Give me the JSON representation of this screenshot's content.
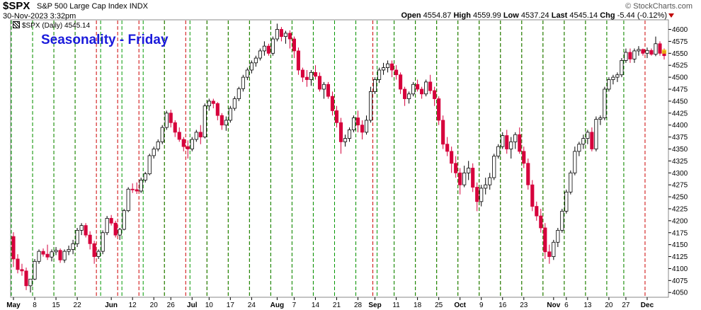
{
  "header": {
    "symbol": "$SPX",
    "description": "S&P 500 Large Cap Index",
    "exchange": "INDX",
    "timestamp": "30-Nov-2023 3:32pm",
    "watermark": "© StockCharts.com",
    "open_label": "Open",
    "open": "4554.87",
    "high_label": "High",
    "high": "4559.99",
    "low_label": "Low",
    "low": "4537.24",
    "last_label": "Last",
    "last": "4545.14",
    "chg_label": "Chg",
    "chg": "-5.44 (-0.12%)"
  },
  "legend": "$SPX (Daily) 4545.14",
  "title": "Seasonality - Friday",
  "colors": {
    "up": "#ffffff",
    "down": "#d6003c",
    "flat": "#000000",
    "friday_line": "#cc0000",
    "monday_line": "#009900",
    "title": "#1a1adb"
  },
  "chart_data": {
    "type": "candlestick",
    "title": "Seasonality - Friday",
    "ylim": [
      4040,
      4620
    ],
    "yticks": [
      4050,
      4075,
      4100,
      4125,
      4150,
      4175,
      4200,
      4225,
      4250,
      4275,
      4300,
      4325,
      4350,
      4375,
      4400,
      4425,
      4450,
      4475,
      4500,
      4525,
      4550,
      4575,
      4600
    ],
    "x_labels": [
      {
        "label": "May",
        "i": 0,
        "month": true
      },
      {
        "label": "8",
        "i": 5
      },
      {
        "label": "15",
        "i": 10
      },
      {
        "label": "22",
        "i": 15
      },
      {
        "label": "Jun",
        "i": 23,
        "month": true
      },
      {
        "label": "12",
        "i": 28
      },
      {
        "label": "20",
        "i": 33
      },
      {
        "label": "26",
        "i": 37
      },
      {
        "label": "Jul",
        "i": 42,
        "month": true
      },
      {
        "label": "10",
        "i": 46
      },
      {
        "label": "17",
        "i": 51
      },
      {
        "label": "24",
        "i": 56
      },
      {
        "label": "Aug",
        "i": 62,
        "month": true
      },
      {
        "label": "7",
        "i": 66
      },
      {
        "label": "14",
        "i": 71
      },
      {
        "label": "21",
        "i": 76
      },
      {
        "label": "28",
        "i": 81
      },
      {
        "label": "Sep",
        "i": 85,
        "month": true
      },
      {
        "label": "11",
        "i": 90
      },
      {
        "label": "18",
        "i": 95
      },
      {
        "label": "25",
        "i": 100
      },
      {
        "label": "Oct",
        "i": 105,
        "month": true
      },
      {
        "label": "9",
        "i": 110
      },
      {
        "label": "16",
        "i": 115
      },
      {
        "label": "23",
        "i": 120
      },
      {
        "label": "Nov",
        "i": 127,
        "month": true
      },
      {
        "label": "6",
        "i": 130
      },
      {
        "label": "13",
        "i": 135
      },
      {
        "label": "20",
        "i": 140
      },
      {
        "label": "27",
        "i": 144
      },
      {
        "label": "Dec",
        "i": 149,
        "month": true
      }
    ],
    "friday_lines": [
      4,
      9,
      14,
      19,
      24,
      29,
      35,
      40,
      45,
      50,
      55,
      60,
      65,
      70,
      75,
      80,
      84,
      89,
      94,
      99,
      104,
      109,
      114,
      119,
      124,
      129,
      134,
      139,
      143,
      148
    ],
    "monday_lines": [
      0,
      5,
      10,
      15,
      21,
      26,
      31,
      36,
      42,
      46,
      51,
      56,
      61,
      66,
      71,
      76,
      81,
      86,
      90,
      95,
      100,
      105,
      110,
      115,
      120,
      125,
      130,
      135,
      140,
      144
    ],
    "candles": [
      [
        4167,
        4176,
        4103,
        4120
      ],
      [
        4120,
        4130,
        4090,
        4098
      ],
      [
        4098,
        4110,
        4085,
        4095
      ],
      [
        4095,
        4102,
        4055,
        4064
      ],
      [
        4064,
        4075,
        4050,
        4078
      ],
      [
        4078,
        4120,
        4076,
        4115
      ],
      [
        4115,
        4140,
        4110,
        4136
      ],
      [
        4136,
        4142,
        4125,
        4130
      ],
      [
        4130,
        4150,
        4118,
        4124
      ],
      [
        4124,
        4140,
        4115,
        4135
      ],
      [
        4135,
        4145,
        4128,
        4138
      ],
      [
        4138,
        4142,
        4112,
        4118
      ],
      [
        4118,
        4140,
        4112,
        4136
      ],
      [
        4136,
        4148,
        4128,
        4140
      ],
      [
        4140,
        4160,
        4130,
        4152
      ],
      [
        4152,
        4185,
        4145,
        4180
      ],
      [
        4180,
        4195,
        4170,
        4190
      ],
      [
        4190,
        4195,
        4165,
        4170
      ],
      [
        4170,
        4178,
        4140,
        4152
      ],
      [
        4152,
        4158,
        4110,
        4125
      ],
      [
        4125,
        4140,
        4120,
        4136
      ],
      [
        4136,
        4180,
        4130,
        4175
      ],
      [
        4175,
        4210,
        4170,
        4205
      ],
      [
        4205,
        4212,
        4190,
        4195
      ],
      [
        4195,
        4200,
        4165,
        4170
      ],
      [
        4170,
        4185,
        4160,
        4182
      ],
      [
        4182,
        4225,
        4180,
        4221
      ],
      [
        4221,
        4270,
        4218,
        4266
      ],
      [
        4266,
        4278,
        4258,
        4265
      ],
      [
        4265,
        4280,
        4256,
        4262
      ],
      [
        4262,
        4290,
        4258,
        4285
      ],
      [
        4285,
        4302,
        4280,
        4298
      ],
      [
        4298,
        4340,
        4295,
        4336
      ],
      [
        4336,
        4355,
        4330,
        4350
      ],
      [
        4350,
        4370,
        4345,
        4365
      ],
      [
        4365,
        4400,
        4360,
        4395
      ],
      [
        4395,
        4430,
        4390,
        4425
      ],
      [
        4425,
        4432,
        4395,
        4405
      ],
      [
        4405,
        4410,
        4375,
        4385
      ],
      [
        4385,
        4395,
        4365,
        4370
      ],
      [
        4370,
        4375,
        4345,
        4355
      ],
      [
        4355,
        4368,
        4330,
        4350
      ],
      [
        4350,
        4375,
        4345,
        4370
      ],
      [
        4370,
        4390,
        4365,
        4385
      ],
      [
        4385,
        4400,
        4360,
        4375
      ],
      [
        4375,
        4445,
        4372,
        4440
      ],
      [
        4440,
        4455,
        4430,
        4450
      ],
      [
        4450,
        4455,
        4435,
        4445
      ],
      [
        4445,
        4448,
        4410,
        4420
      ],
      [
        4420,
        4425,
        4390,
        4400
      ],
      [
        4400,
        4418,
        4388,
        4410
      ],
      [
        4410,
        4440,
        4405,
        4435
      ],
      [
        4435,
        4460,
        4430,
        4455
      ],
      [
        4455,
        4480,
        4450,
        4476
      ],
      [
        4476,
        4505,
        4470,
        4500
      ],
      [
        4500,
        4520,
        4494,
        4515
      ],
      [
        4515,
        4535,
        4508,
        4530
      ],
      [
        4530,
        4545,
        4522,
        4540
      ],
      [
        4540,
        4560,
        4535,
        4555
      ],
      [
        4555,
        4575,
        4545,
        4565
      ],
      [
        4565,
        4570,
        4545,
        4550
      ],
      [
        4550,
        4585,
        4545,
        4580
      ],
      [
        4580,
        4612,
        4575,
        4600
      ],
      [
        4600,
        4605,
        4575,
        4585
      ],
      [
        4585,
        4597,
        4570,
        4592
      ],
      [
        4592,
        4598,
        4560,
        4580
      ],
      [
        4580,
        4585,
        4540,
        4555
      ],
      [
        4555,
        4562,
        4505,
        4515
      ],
      [
        4515,
        4520,
        4490,
        4500
      ],
      [
        4500,
        4515,
        4480,
        4495
      ],
      [
        4495,
        4515,
        4482,
        4510
      ],
      [
        4510,
        4525,
        4495,
        4502
      ],
      [
        4502,
        4510,
        4470,
        4475
      ],
      [
        4475,
        4490,
        4455,
        4485
      ],
      [
        4485,
        4490,
        4455,
        4460
      ],
      [
        4460,
        4470,
        4420,
        4430
      ],
      [
        4430,
        4440,
        4395,
        4405
      ],
      [
        4405,
        4415,
        4340,
        4365
      ],
      [
        4365,
        4380,
        4355,
        4372
      ],
      [
        4372,
        4395,
        4365,
        4390
      ],
      [
        4390,
        4420,
        4385,
        4415
      ],
      [
        4415,
        4430,
        4385,
        4400
      ],
      [
        4400,
        4410,
        4370,
        4385
      ],
      [
        4385,
        4420,
        4380,
        4410
      ],
      [
        4410,
        4480,
        4405,
        4470
      ],
      [
        4470,
        4500,
        4465,
        4495
      ],
      [
        4495,
        4520,
        4488,
        4515
      ],
      [
        4515,
        4530,
        4505,
        4520
      ],
      [
        4520,
        4535,
        4510,
        4528
      ],
      [
        4528,
        4535,
        4500,
        4515
      ],
      [
        4515,
        4525,
        4495,
        4505
      ],
      [
        4505,
        4510,
        4465,
        4475
      ],
      [
        4475,
        4480,
        4440,
        4455
      ],
      [
        4455,
        4470,
        4445,
        4465
      ],
      [
        4465,
        4490,
        4460,
        4485
      ],
      [
        4485,
        4495,
        4470,
        4475
      ],
      [
        4475,
        4480,
        4455,
        4465
      ],
      [
        4465,
        4495,
        4460,
        4490
      ],
      [
        4490,
        4505,
        4465,
        4472
      ],
      [
        4472,
        4480,
        4440,
        4455
      ],
      [
        4455,
        4460,
        4400,
        4410
      ],
      [
        4410,
        4420,
        4350,
        4360
      ],
      [
        4360,
        4375,
        4335,
        4345
      ],
      [
        4345,
        4355,
        4300,
        4320
      ],
      [
        4320,
        4335,
        4290,
        4300
      ],
      [
        4300,
        4310,
        4255,
        4275
      ],
      [
        4275,
        4315,
        4270,
        4300
      ],
      [
        4300,
        4325,
        4285,
        4310
      ],
      [
        4310,
        4320,
        4260,
        4270
      ],
      [
        4270,
        4280,
        4220,
        4240
      ],
      [
        4240,
        4275,
        4230,
        4268
      ],
      [
        4268,
        4290,
        4255,
        4275
      ],
      [
        4275,
        4300,
        4265,
        4290
      ],
      [
        4290,
        4340,
        4285,
        4335
      ],
      [
        4335,
        4360,
        4330,
        4355
      ],
      [
        4355,
        4385,
        4350,
        4378
      ],
      [
        4378,
        4390,
        4340,
        4350
      ],
      [
        4350,
        4375,
        4330,
        4365
      ],
      [
        4365,
        4385,
        4350,
        4380
      ],
      [
        4380,
        4395,
        4340,
        4345
      ],
      [
        4345,
        4355,
        4310,
        4320
      ],
      [
        4320,
        4330,
        4265,
        4275
      ],
      [
        4275,
        4285,
        4220,
        4230
      ],
      [
        4230,
        4240,
        4200,
        4210
      ],
      [
        4210,
        4225,
        4175,
        4185
      ],
      [
        4185,
        4195,
        4120,
        4135
      ],
      [
        4135,
        4150,
        4110,
        4125
      ],
      [
        4125,
        4160,
        4118,
        4155
      ],
      [
        4155,
        4185,
        4145,
        4180
      ],
      [
        4180,
        4225,
        4175,
        4220
      ],
      [
        4220,
        4265,
        4215,
        4260
      ],
      [
        4260,
        4305,
        4255,
        4300
      ],
      [
        4300,
        4355,
        4295,
        4345
      ],
      [
        4345,
        4365,
        4335,
        4360
      ],
      [
        4360,
        4380,
        4350,
        4372
      ],
      [
        4372,
        4390,
        4360,
        4385
      ],
      [
        4385,
        4395,
        4345,
        4350
      ],
      [
        4350,
        4418,
        4345,
        4412
      ],
      [
        4412,
        4420,
        4400,
        4415
      ],
      [
        4415,
        4480,
        4410,
        4475
      ],
      [
        4475,
        4500,
        4470,
        4495
      ],
      [
        4495,
        4505,
        4485,
        4500
      ],
      [
        4500,
        4510,
        4490,
        4505
      ],
      [
        4505,
        4540,
        4500,
        4535
      ],
      [
        4535,
        4560,
        4530,
        4552
      ],
      [
        4552,
        4560,
        4530,
        4538
      ],
      [
        4538,
        4560,
        4530,
        4555
      ],
      [
        4555,
        4565,
        4545,
        4558
      ],
      [
        4558,
        4560,
        4545,
        4550
      ],
      [
        4550,
        4562,
        4540,
        4556
      ],
      [
        4556,
        4560,
        4545,
        4548
      ],
      [
        4548,
        4585,
        4544,
        4570
      ],
      [
        4570,
        4575,
        4545,
        4550
      ],
      [
        4555,
        4560,
        4537,
        4545
      ]
    ]
  }
}
